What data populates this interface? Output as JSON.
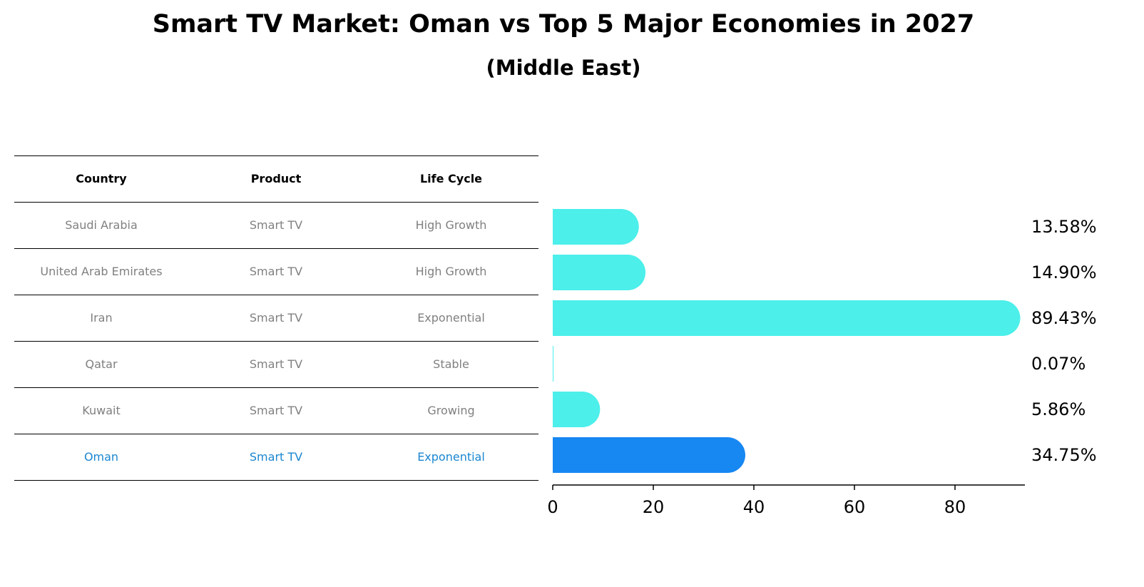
{
  "title": "Smart TV Market: Oman vs Top 5 Major Economies in 2027",
  "subtitle": "(Middle East)",
  "table": {
    "headers": [
      "Country",
      "Product",
      "Life Cycle"
    ],
    "rows": [
      [
        "Saudi Arabia",
        "Smart TV",
        "High Growth"
      ],
      [
        "United Arab Emirates",
        "Smart TV",
        "High Growth"
      ],
      [
        "Iran",
        "Smart TV",
        "Exponential"
      ],
      [
        "Qatar",
        "Smart TV",
        "Stable"
      ],
      [
        "Kuwait",
        "Smart TV",
        "Growing"
      ],
      [
        "Oman",
        "Smart TV",
        "Exponential"
      ]
    ]
  },
  "colors": {
    "bar": "#4cefea",
    "highlight_bar": "#1787f2",
    "highlight_text": "#1a86d0",
    "muted_text": "#808080"
  },
  "chart_data": {
    "type": "bar",
    "orientation": "horizontal",
    "title": "Smart TV Market: Oman vs Top 5 Major Economies in 2027",
    "subtitle": "(Middle East)",
    "categories": [
      "Saudi Arabia",
      "United Arab Emirates",
      "Iran",
      "Qatar",
      "Kuwait",
      "Oman"
    ],
    "values": [
      13.58,
      14.9,
      89.43,
      0.07,
      5.86,
      34.75
    ],
    "value_labels": [
      "13.58%",
      "14.90%",
      "89.43%",
      "0.07%",
      "5.86%",
      "34.75%"
    ],
    "highlight": "Oman",
    "xlim": [
      0,
      93.9
    ],
    "xticks": [
      0,
      20,
      40,
      60,
      80
    ],
    "xlabel": "",
    "ylabel": ""
  }
}
